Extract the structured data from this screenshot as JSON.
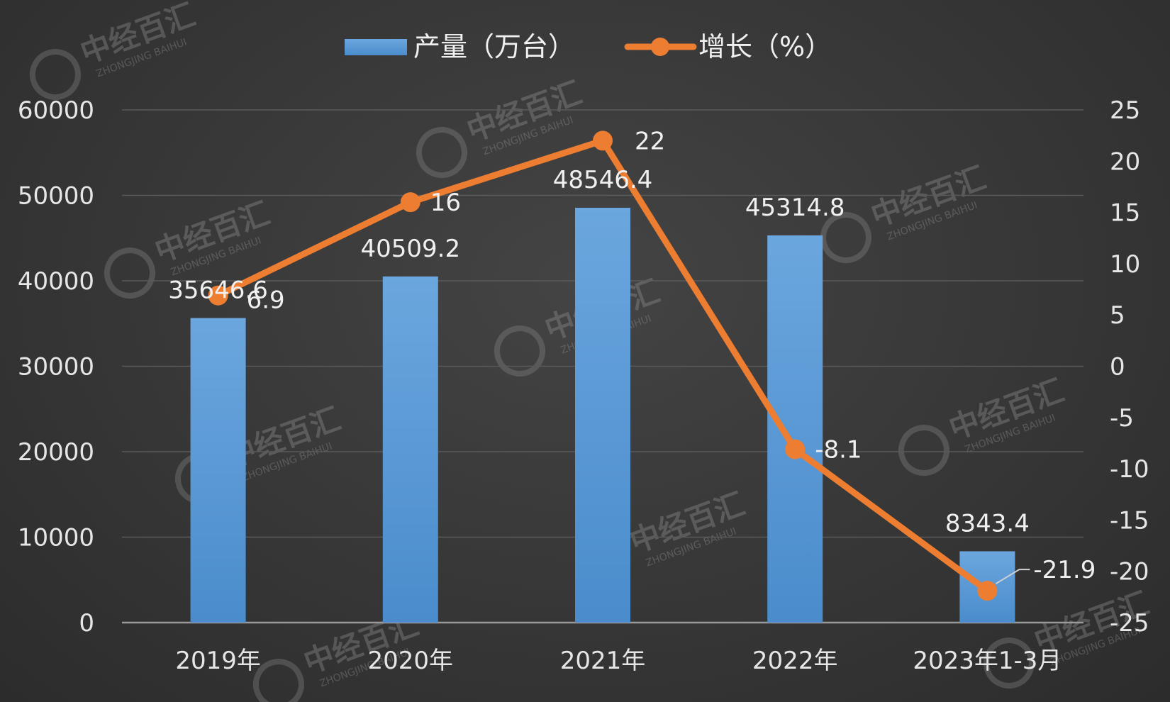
{
  "chart_data": {
    "type": "bar",
    "categories": [
      "2019年",
      "2020年",
      "2021年",
      "2022年",
      "2023年1-3月"
    ],
    "series": [
      {
        "name": "产量（万台）",
        "type": "bar",
        "axis": "left",
        "values": [
          35646.6,
          40509.2,
          48546.4,
          45314.8,
          8343.4
        ],
        "labels": [
          "35646.6",
          "40509.2",
          "48546.4",
          "45314.8",
          "8343.4"
        ],
        "color": "#5b9bd5"
      },
      {
        "name": "增长（%）",
        "type": "line",
        "axis": "right",
        "values": [
          6.9,
          16,
          22,
          -8.1,
          -21.9
        ],
        "labels": [
          "6.9",
          "16",
          "22",
          "-8.1",
          "-21.9"
        ],
        "color": "#ed7d31"
      }
    ],
    "y_left": {
      "min": 0,
      "max": 60000,
      "ticks": [
        "60000",
        "50000",
        "40000",
        "30000",
        "20000",
        "10000",
        "0"
      ]
    },
    "y_right": {
      "min": -25,
      "max": 25,
      "ticks": [
        "25",
        "20",
        "15",
        "10",
        "5",
        "0",
        "-5",
        "-10",
        "-15",
        "-20",
        "-25"
      ]
    },
    "grid": true,
    "legend_position": "top-center"
  },
  "watermark": {
    "title": "中经百汇",
    "subtitle": "ZHONGJING BAIHUI"
  },
  "colors": {
    "background": "#3a3a3a",
    "bar": "#5b9bd5",
    "line": "#ed7d31",
    "grid": "#5a5a5a",
    "text": "#e6e6e6"
  }
}
